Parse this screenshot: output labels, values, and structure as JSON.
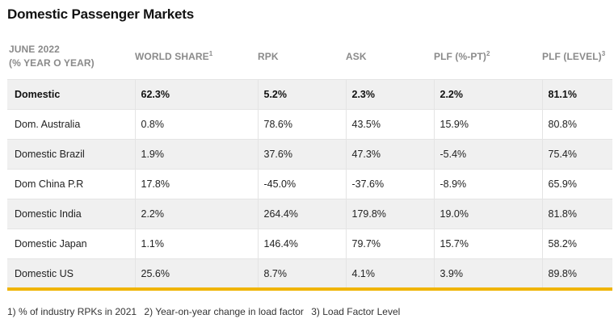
{
  "title": "Domestic Passenger Markets",
  "columns": [
    {
      "label_line1": "JUNE 2022",
      "label_line2": "(% YEAR O YEAR)",
      "sup": ""
    },
    {
      "label": "WORLD SHARE",
      "sup": "1"
    },
    {
      "label": "RPK",
      "sup": ""
    },
    {
      "label": "ASK",
      "sup": ""
    },
    {
      "label": "PLF (%-PT)",
      "sup": "2"
    },
    {
      "label": "PLF (LEVEL)",
      "sup": "3"
    }
  ],
  "rows": [
    {
      "market": "Domestic",
      "world_share": "62.3%",
      "rpk": "5.2%",
      "ask": "2.3%",
      "plf_pt": "2.2%",
      "plf_level": "81.1%"
    },
    {
      "market": "Dom. Australia",
      "world_share": "0.8%",
      "rpk": "78.6%",
      "ask": "43.5%",
      "plf_pt": "15.9%",
      "plf_level": "80.8%"
    },
    {
      "market": "Domestic Brazil",
      "world_share": "1.9%",
      "rpk": "37.6%",
      "ask": "47.3%",
      "plf_pt": "-5.4%",
      "plf_level": "75.4%"
    },
    {
      "market": "Dom China P.R",
      "world_share": "17.8%",
      "rpk": "-45.0%",
      "ask": "-37.6%",
      "plf_pt": "-8.9%",
      "plf_level": "65.9%"
    },
    {
      "market": "Domestic India",
      "world_share": "2.2%",
      "rpk": "264.4%",
      "ask": "179.8%",
      "plf_pt": "19.0%",
      "plf_level": "81.8%"
    },
    {
      "market": "Domestic Japan",
      "world_share": "1.1%",
      "rpk": "146.4%",
      "ask": "79.7%",
      "plf_pt": "15.7%",
      "plf_level": "58.2%"
    },
    {
      "market": "Domestic US",
      "world_share": "25.6%",
      "rpk": "8.7%",
      "ask": "4.1%",
      "plf_pt": "3.9%",
      "plf_level": "89.8%"
    }
  ],
  "footnotes": [
    "1) % of industry RPKs in 2021",
    "2) Year-on-year change in load factor",
    "3) Load Factor Level"
  ],
  "colors": {
    "accent_bar": "#f0b400",
    "header_text": "#8a8a8a",
    "row_shade": "#f0f0f0"
  }
}
